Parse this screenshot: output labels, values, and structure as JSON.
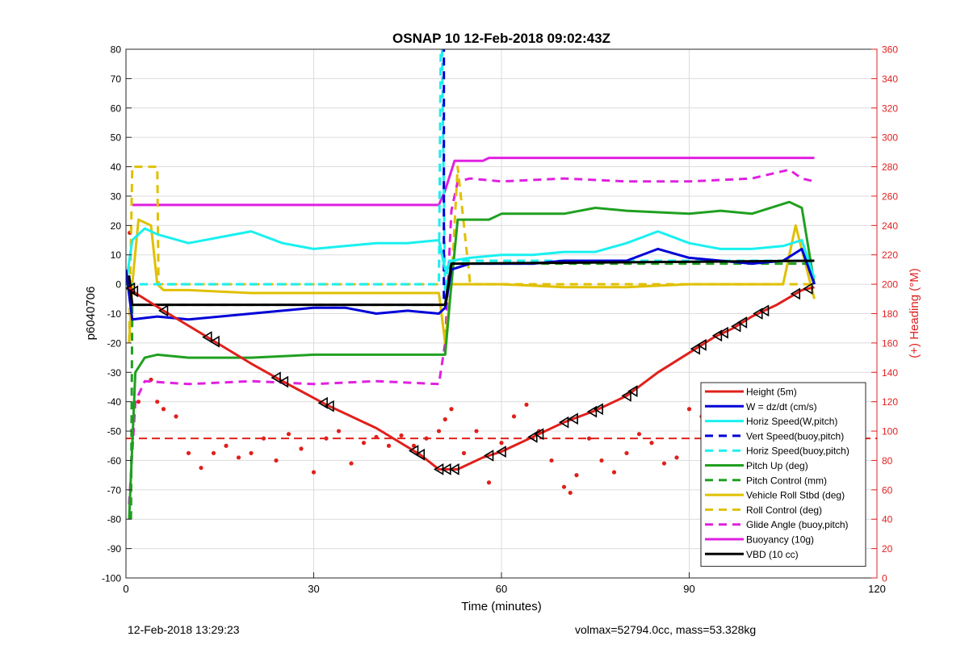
{
  "chart_data": {
    "type": "line",
    "title": "OSNAP 10 12-Feb-2018 09:02:43Z",
    "xlabel": "Time (minutes)",
    "ylabel_left": "p6040706",
    "ylabel_right": "(+) Heading (°M)",
    "xlim": [
      0,
      120
    ],
    "ylim_left": [
      -100,
      80
    ],
    "ylim_right": [
      0,
      360
    ],
    "x_ticks": [
      0,
      30,
      60,
      90,
      120
    ],
    "y_ticks_left": [
      -100,
      -90,
      -80,
      -70,
      -60,
      -50,
      -40,
      -30,
      -20,
      -10,
      0,
      10,
      20,
      30,
      40,
      50,
      60,
      70,
      80
    ],
    "y_ticks_right": [
      0,
      20,
      40,
      60,
      80,
      100,
      120,
      140,
      160,
      180,
      200,
      220,
      240,
      260,
      280,
      300,
      320,
      340,
      360
    ],
    "grid": true,
    "legend_placement": "bottom-right",
    "colors": {
      "red": "#e0201b",
      "blue": "#0000d8",
      "cyan": "#19f0f0",
      "green": "#20a020",
      "yellow": "#e0c000",
      "magenta": "#e020e0",
      "black": "#000000",
      "right_axis": "#e02020"
    },
    "series": [
      {
        "name": "Height (5m)",
        "color": "#e0201b",
        "style": "solid",
        "x": [
          0.5,
          1.5,
          6,
          13,
          20,
          25,
          32,
          40,
          47,
          50,
          53,
          57,
          60,
          65,
          70,
          75,
          80,
          85,
          91,
          94,
          97,
          100,
          104,
          108,
          110
        ],
        "y": [
          -1,
          -3,
          -9,
          -18,
          -27,
          -33,
          -41,
          -49,
          -58,
          -63,
          -63,
          -59,
          -57,
          -52,
          -47,
          -43,
          -38,
          -30,
          -22,
          -18,
          -15,
          -11,
          -7,
          -2,
          -1
        ]
      },
      {
        "name": "W = dz/dt (cm/s)",
        "color": "#0000d8",
        "style": "solid",
        "x": [
          0,
          1,
          5,
          10,
          15,
          20,
          25,
          30,
          35,
          40,
          45,
          50,
          51,
          52,
          55,
          60,
          65,
          70,
          75,
          80,
          85,
          90,
          95,
          100,
          105,
          108,
          110
        ],
        "y": [
          5,
          -12,
          -11,
          -12,
          -11,
          -10,
          -9,
          -8,
          -8,
          -10,
          -9,
          -10,
          -8,
          5,
          7,
          7,
          7,
          8,
          8,
          8,
          12,
          9,
          8,
          7,
          8,
          12,
          0
        ]
      },
      {
        "name": "Horiz Speed(W,pitch)",
        "color": "#19f0f0",
        "style": "solid",
        "x": [
          0,
          1,
          3,
          5,
          10,
          15,
          20,
          25,
          30,
          35,
          40,
          45,
          50,
          51,
          52,
          55,
          60,
          65,
          70,
          75,
          80,
          85,
          90,
          95,
          100,
          105,
          108,
          110
        ],
        "y": [
          0,
          15,
          19,
          17,
          14,
          16,
          18,
          14,
          12,
          13,
          14,
          14,
          15,
          5,
          8,
          9,
          10,
          10,
          11,
          11,
          14,
          18,
          14,
          12,
          12,
          13,
          15,
          2
        ]
      },
      {
        "name": "Vert Speed(buoy,pitch)",
        "color": "#0000d8",
        "style": "dashed",
        "x": [
          50.8,
          50.8
        ],
        "y": [
          -5,
          80
        ]
      },
      {
        "name": "Horiz Speed(buoy,pitch)",
        "color": "#19f0f0",
        "style": "dashed",
        "x": [
          0,
          50,
          50.3,
          50.5,
          51,
          51.5,
          60,
          110
        ],
        "y": [
          0,
          0,
          80,
          80,
          -5,
          8,
          8,
          8
        ]
      },
      {
        "name": "Pitch Up (deg)",
        "color": "#20a020",
        "style": "solid",
        "x": [
          0.5,
          1.5,
          3,
          5,
          10,
          20,
          30,
          40,
          50,
          51,
          52,
          53,
          58,
          60,
          70,
          75,
          80,
          90,
          95,
          100,
          106,
          108,
          110
        ],
        "y": [
          -80,
          -30,
          -25,
          -24,
          -25,
          -25,
          -24,
          -24,
          -24,
          -24,
          0,
          22,
          22,
          24,
          24,
          26,
          25,
          24,
          25,
          24,
          28,
          26,
          0
        ]
      },
      {
        "name": "Pitch Control (mm)",
        "color": "#20a020",
        "style": "dashed",
        "x": [
          0.8,
          1,
          2,
          50,
          51,
          52,
          53,
          110
        ],
        "y": [
          -80,
          -7,
          -7,
          -7,
          -7,
          7,
          7,
          7
        ]
      },
      {
        "name": "Vehicle Roll Stbd (deg)",
        "color": "#e0c000",
        "style": "solid",
        "x": [
          0.5,
          1,
          2,
          4,
          5,
          6,
          10,
          20,
          30,
          40,
          50,
          51,
          52,
          53,
          60,
          70,
          80,
          90,
          100,
          105,
          107,
          110
        ],
        "y": [
          -20,
          0,
          22,
          20,
          0,
          -2,
          -2,
          -3,
          -3,
          -3,
          -3,
          -20,
          0,
          0,
          0,
          -1,
          -1,
          0,
          0,
          0,
          20,
          -5
        ]
      },
      {
        "name": "Roll Control (deg)",
        "color": "#e0c000",
        "style": "dashed",
        "x": [
          0.5,
          1,
          1.5,
          5,
          5.2,
          6,
          50,
          52,
          53,
          55,
          110
        ],
        "y": [
          -20,
          40,
          40,
          40,
          0,
          0,
          0,
          0,
          40,
          0,
          0
        ]
      },
      {
        "name": "Glide Angle (buoy,pitch)",
        "color": "#e020e0",
        "style": "dashed",
        "x": [
          0.5,
          1.5,
          3,
          10,
          20,
          30,
          40,
          50,
          51,
          52,
          53,
          55,
          60,
          70,
          80,
          90,
          100,
          106,
          108,
          110
        ],
        "y": [
          -75,
          -40,
          -33,
          -34,
          -33,
          -34,
          -33,
          -34,
          -20,
          25,
          35,
          36,
          35,
          36,
          35,
          35,
          36,
          39,
          36,
          35
        ]
      },
      {
        "name": "Buoyancy (10g)",
        "color": "#e020e0",
        "style": "solid",
        "x": [
          1,
          50,
          51,
          52.5,
          57,
          58,
          110
        ],
        "y": [
          27,
          27,
          32,
          42,
          42,
          43,
          43
        ]
      },
      {
        "name": "VBD (10 cc)",
        "color": "#000000",
        "style": "solid",
        "x": [
          0.5,
          1,
          2,
          50,
          51,
          52,
          53,
          110
        ],
        "y": [
          3,
          -7,
          -7,
          -7,
          -7,
          7,
          7,
          8
        ]
      }
    ],
    "heading_reference_deg": 95,
    "heading_points_deg": {
      "x": [
        0.6,
        2,
        4,
        5,
        6,
        8,
        10,
        12,
        14,
        16,
        18,
        20,
        22,
        24,
        26,
        28,
        30,
        32,
        34,
        36,
        38,
        40,
        42,
        44,
        46,
        48,
        50,
        51,
        52,
        54,
        56,
        58,
        60,
        62,
        64,
        66,
        68,
        70,
        71,
        72,
        74,
        76,
        78,
        80,
        82,
        84,
        86,
        88,
        90,
        92,
        94,
        96,
        98,
        100,
        102,
        104,
        106,
        108
      ],
      "y": [
        235,
        120,
        135,
        120,
        115,
        110,
        85,
        75,
        85,
        90,
        82,
        85,
        95,
        80,
        98,
        88,
        72,
        95,
        100,
        78,
        92,
        96,
        90,
        97,
        90,
        95,
        100,
        108,
        115,
        85,
        100,
        65,
        92,
        110,
        118,
        100,
        80,
        62,
        58,
        70,
        95,
        80,
        72,
        85,
        98,
        92,
        78,
        82,
        115,
        110,
        100,
        90,
        65,
        80,
        70,
        60,
        45,
        60
      ]
    },
    "chevron_marker_minutes": [
      0.7,
      1.2,
      6,
      13,
      14.2,
      24,
      25.2,
      31.5,
      32.5,
      46,
      47,
      50,
      51.2,
      52.5,
      58,
      60,
      65,
      66,
      70,
      71.5,
      74.5,
      75.5,
      80,
      81,
      91,
      92,
      94.5,
      95.5,
      97.5,
      98.5,
      101,
      102,
      107,
      109
    ]
  },
  "footer": {
    "left": "12-Feb-2018 13:29:23",
    "right": "volmax=52794.0cc, mass=53.328kg"
  }
}
